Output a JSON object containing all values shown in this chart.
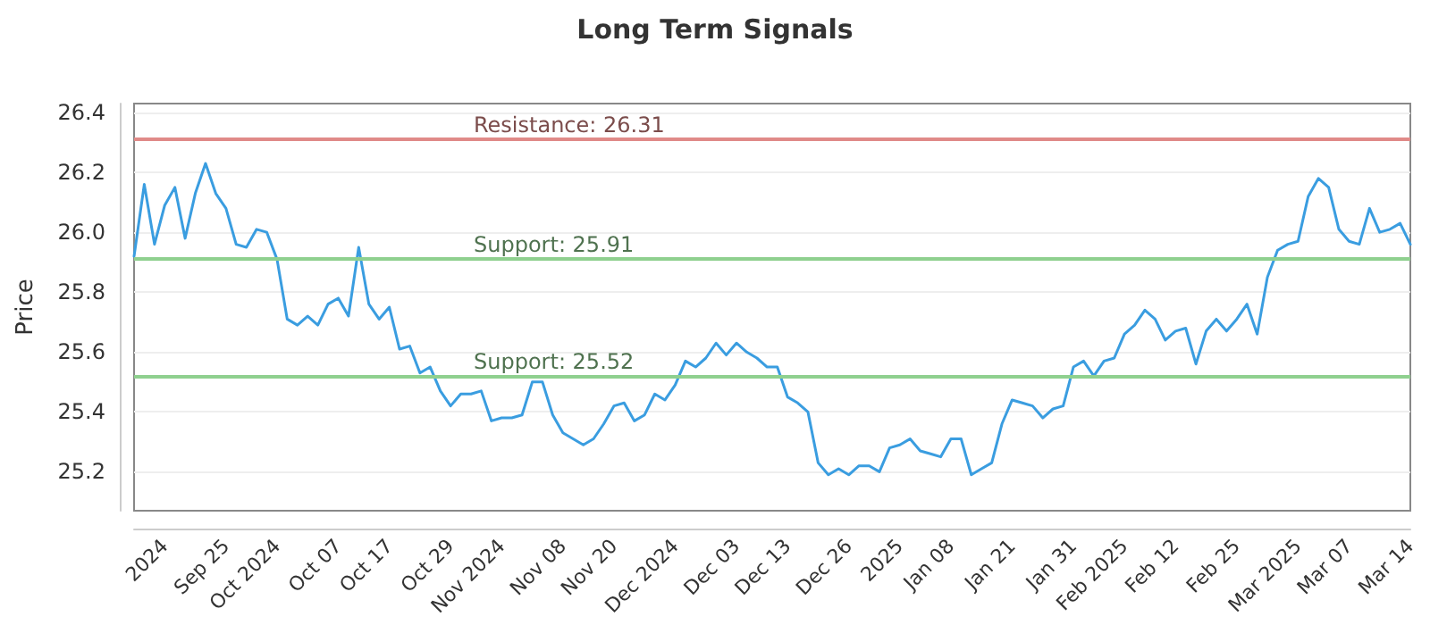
{
  "chart_data": {
    "type": "line",
    "title": "Long Term Signals",
    "ylabel": "Price",
    "categories": [
      null,
      null,
      null,
      "2024",
      null,
      null,
      null,
      null,
      null,
      "Sep 25",
      null,
      null,
      null,
      null,
      "Oct 2024",
      null,
      null,
      null,
      null,
      null,
      "Oct 07",
      null,
      null,
      null,
      null,
      "Oct 17",
      null,
      null,
      null,
      null,
      null,
      "Oct 29",
      null,
      null,
      null,
      null,
      "Nov 2024",
      null,
      null,
      null,
      null,
      null,
      "Nov 08",
      null,
      null,
      null,
      null,
      "Nov 20",
      null,
      null,
      null,
      null,
      null,
      "Dec 2024",
      null,
      null,
      null,
      null,
      null,
      "Dec 03",
      null,
      null,
      null,
      null,
      "Dec 13",
      null,
      null,
      null,
      null,
      null,
      "Dec 26",
      null,
      null,
      null,
      null,
      "2025",
      null,
      null,
      null,
      null,
      "Jan 08",
      null,
      null,
      null,
      null,
      null,
      "Jan 21",
      null,
      null,
      null,
      null,
      null,
      "Jan 31",
      null,
      null,
      null,
      null,
      "Feb 2025",
      null,
      null,
      null,
      null,
      "Feb 12",
      null,
      null,
      null,
      null,
      null,
      "Feb 25",
      null,
      null,
      null,
      null,
      null,
      "Mar 2025",
      null,
      null,
      null,
      null,
      "Mar 07",
      null,
      null,
      null,
      null,
      null,
      "Mar 14"
    ],
    "series": [
      {
        "color": "#3a9de0",
        "values": [
          25.92,
          26.16,
          25.96,
          26.09,
          26.15,
          25.98,
          26.13,
          26.23,
          26.13,
          26.08,
          25.96,
          25.95,
          26.01,
          26.0,
          25.91,
          25.71,
          25.69,
          25.72,
          25.69,
          25.76,
          25.78,
          25.72,
          25.95,
          25.76,
          25.71,
          25.75,
          25.61,
          25.62,
          25.53,
          25.55,
          25.47,
          25.42,
          25.46,
          25.46,
          25.47,
          25.37,
          25.38,
          25.38,
          25.39,
          25.5,
          25.5,
          25.39,
          25.33,
          25.31,
          25.29,
          25.31,
          25.36,
          25.42,
          25.43,
          25.37,
          25.39,
          25.46,
          25.44,
          25.49,
          25.57,
          25.55,
          25.58,
          25.63,
          25.59,
          25.63,
          25.6,
          25.58,
          25.55,
          25.55,
          25.45,
          25.43,
          25.4,
          25.23,
          25.19,
          25.21,
          25.19,
          25.22,
          25.22,
          25.2,
          25.28,
          25.29,
          25.31,
          25.27,
          25.26,
          25.25,
          25.31,
          25.31,
          25.19,
          25.21,
          25.23,
          25.36,
          25.44,
          25.43,
          25.42,
          25.38,
          25.41,
          25.42,
          25.55,
          25.57,
          25.52,
          25.57,
          25.58,
          25.66,
          25.69,
          25.74,
          25.71,
          25.64,
          25.67,
          25.68,
          25.56,
          25.67,
          25.71,
          25.67,
          25.71,
          25.76,
          25.66,
          25.85,
          25.94,
          25.96,
          25.97,
          26.12,
          26.18,
          26.15,
          26.01,
          25.97,
          25.96,
          26.08,
          26.0,
          26.01,
          26.03,
          25.96
        ]
      }
    ],
    "ylim": [
      25.07,
      26.43
    ],
    "yticks": [
      25.2,
      25.4,
      25.6,
      25.8,
      {
        "value": 26,
        "label": "26.0"
      },
      26.2,
      26.4
    ],
    "ref_lines": [
      {
        "axis": "y",
        "value": 26.31,
        "label": "Resistance: 26.31",
        "color": "#e08a88"
      },
      {
        "axis": "y",
        "value": 25.91,
        "label": "Support: 25.91",
        "color": "#8fd08f"
      },
      {
        "axis": "y",
        "value": 25.52,
        "label": "Support: 25.52",
        "color": "#8fd08f"
      }
    ],
    "grid": "y",
    "marker": "none",
    "line_style": "solid"
  }
}
